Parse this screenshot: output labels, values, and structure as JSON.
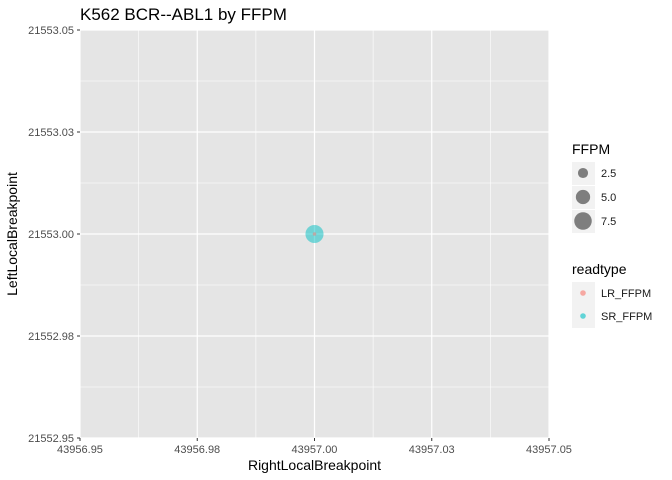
{
  "chart_data": {
    "type": "scatter",
    "title": "K562 BCR--ABL1 by FFPM",
    "xlabel": "RightLocalBreakpoint",
    "ylabel": "LeftLocalBreakpoint",
    "xlim": [
      43956.95,
      43957.05
    ],
    "ylim": [
      21552.95,
      21553.05
    ],
    "x_ticks": [
      43956.95,
      43956.975,
      43957.0,
      43957.025,
      43957.05
    ],
    "x_tick_labels": [
      "43956.95",
      "43956.98",
      "43957.00",
      "43957.03",
      "43957.05"
    ],
    "y_ticks": [
      21552.95,
      21552.975,
      21553.0,
      21553.025,
      21553.05
    ],
    "y_tick_labels": [
      "21552.95",
      "21552.98",
      "21553.00",
      "21553.03",
      "21553.05"
    ],
    "grid": true,
    "series": [
      {
        "name": "LR_FFPM",
        "color": "#F8766D",
        "points": [
          {
            "x": 43957.0,
            "y": 21553.0,
            "ffpm": 0.3
          }
        ]
      },
      {
        "name": "SR_FFPM",
        "color": "#00BFC4",
        "points": [
          {
            "x": 43957.0,
            "y": 21553.0,
            "ffpm": 8.0
          }
        ]
      }
    ],
    "legend": {
      "placement": "right",
      "size_title": "FFPM",
      "size_entries": [
        {
          "label": "2.5",
          "value": 2.5
        },
        {
          "label": "5.0",
          "value": 5.0
        },
        {
          "label": "7.5",
          "value": 7.5
        }
      ],
      "color_title": "readtype",
      "color_entries": [
        {
          "label": "LR_FFPM",
          "color": "#F8766D"
        },
        {
          "label": "SR_FFPM",
          "color": "#00BFC4"
        }
      ]
    },
    "colors": {
      "panel_bg": "#E5E5E5",
      "grid": "#FFFFFF",
      "size_key_fill": "#4D4D4D"
    }
  }
}
